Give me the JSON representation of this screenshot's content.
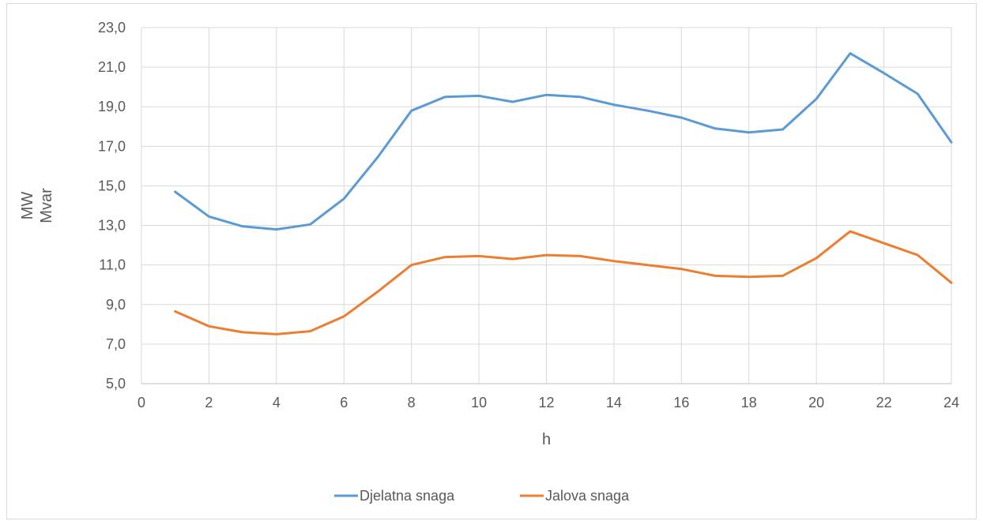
{
  "chart_data": {
    "type": "line",
    "xlabel": "h",
    "ylabel": [
      "MW",
      "Mvar"
    ],
    "xlim": [
      0,
      24
    ],
    "ylim": [
      5.0,
      23.0
    ],
    "xticks": [
      "0",
      "2",
      "4",
      "6",
      "8",
      "10",
      "12",
      "14",
      "16",
      "18",
      "20",
      "22",
      "24"
    ],
    "yticks": [
      "5,0",
      "7,0",
      "9,0",
      "11,0",
      "13,0",
      "15,0",
      "17,0",
      "19,0",
      "21,0",
      "23,0"
    ],
    "grid": true,
    "legend_position": "bottom",
    "x": [
      1,
      2,
      3,
      4,
      5,
      6,
      7,
      8,
      9,
      10,
      11,
      12,
      13,
      14,
      15,
      16,
      17,
      18,
      19,
      20,
      21,
      22,
      23,
      24
    ],
    "series": [
      {
        "name": "Djelatna snaga",
        "color": "#5b9bd5",
        "values": [
          14.7,
          13.45,
          12.95,
          12.8,
          13.05,
          14.35,
          16.45,
          18.8,
          19.5,
          19.55,
          19.25,
          19.6,
          19.5,
          19.1,
          18.8,
          18.45,
          17.9,
          17.7,
          17.85,
          19.4,
          21.7,
          20.7,
          19.65,
          17.2
        ]
      },
      {
        "name": "Jalova snaga",
        "color": "#ed7d31",
        "values": [
          8.65,
          7.9,
          7.6,
          7.5,
          7.65,
          8.4,
          9.65,
          11.0,
          11.4,
          11.45,
          11.3,
          11.5,
          11.45,
          11.2,
          11.0,
          10.8,
          10.45,
          10.4,
          10.45,
          11.35,
          12.7,
          12.1,
          11.5,
          10.1
        ]
      }
    ]
  }
}
